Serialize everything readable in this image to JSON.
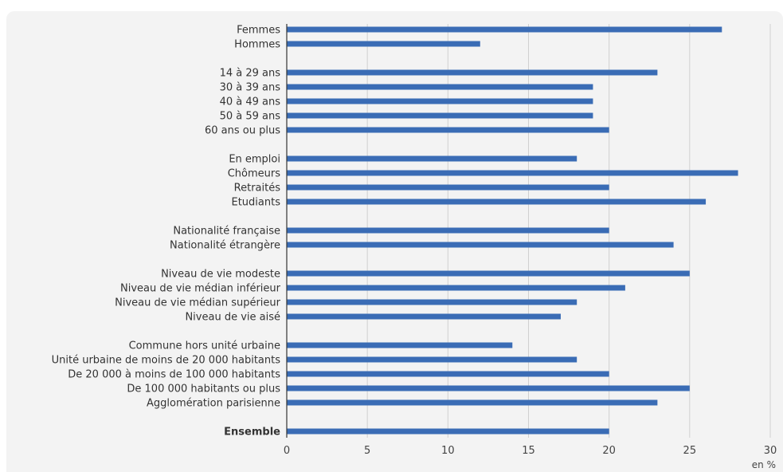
{
  "chart_data": {
    "type": "bar",
    "orientation": "horizontal",
    "title": "",
    "xlabel": "en %",
    "ylabel": "",
    "xlim": [
      0,
      30
    ],
    "x_ticks": [
      0,
      5,
      10,
      15,
      20,
      25,
      30
    ],
    "grid": true,
    "bar_color": "#3a6cb5",
    "groups": [
      {
        "categories": [
          "Femmes",
          "Hommes"
        ],
        "values": [
          27,
          12
        ]
      },
      {
        "categories": [
          "14 à 29 ans",
          "30 à 39 ans",
          "40 à 49 ans",
          "50 à 59 ans",
          "60 ans ou plus"
        ],
        "values": [
          23,
          19,
          19,
          19,
          20
        ]
      },
      {
        "categories": [
          "En emploi",
          "Chômeurs",
          "Retraités",
          "Etudiants"
        ],
        "values": [
          18,
          28,
          20,
          26
        ]
      },
      {
        "categories": [
          "Nationalité française",
          "Nationalité étrangère"
        ],
        "values": [
          20,
          24
        ]
      },
      {
        "categories": [
          "Niveau de vie modeste",
          "Niveau de vie médian inférieur",
          "Niveau de vie médian supérieur",
          "Niveau de vie aisé"
        ],
        "values": [
          25,
          21,
          18,
          17
        ]
      },
      {
        "categories": [
          "Commune hors unité urbaine",
          "Unité urbaine de moins de 20 000 habitants",
          "De 20 000 à moins de 100 000 habitants",
          "De 100 000 habitants ou plus",
          "Agglomération parisienne"
        ],
        "values": [
          14,
          18,
          20,
          25,
          23
        ]
      },
      {
        "categories": [
          "Ensemble"
        ],
        "values": [
          20
        ],
        "bold": true
      }
    ]
  },
  "colors": {
    "panel": "#f3f3f3",
    "grid": "#d0d0d0",
    "axis": "#333333",
    "title": "#1d71b8"
  }
}
